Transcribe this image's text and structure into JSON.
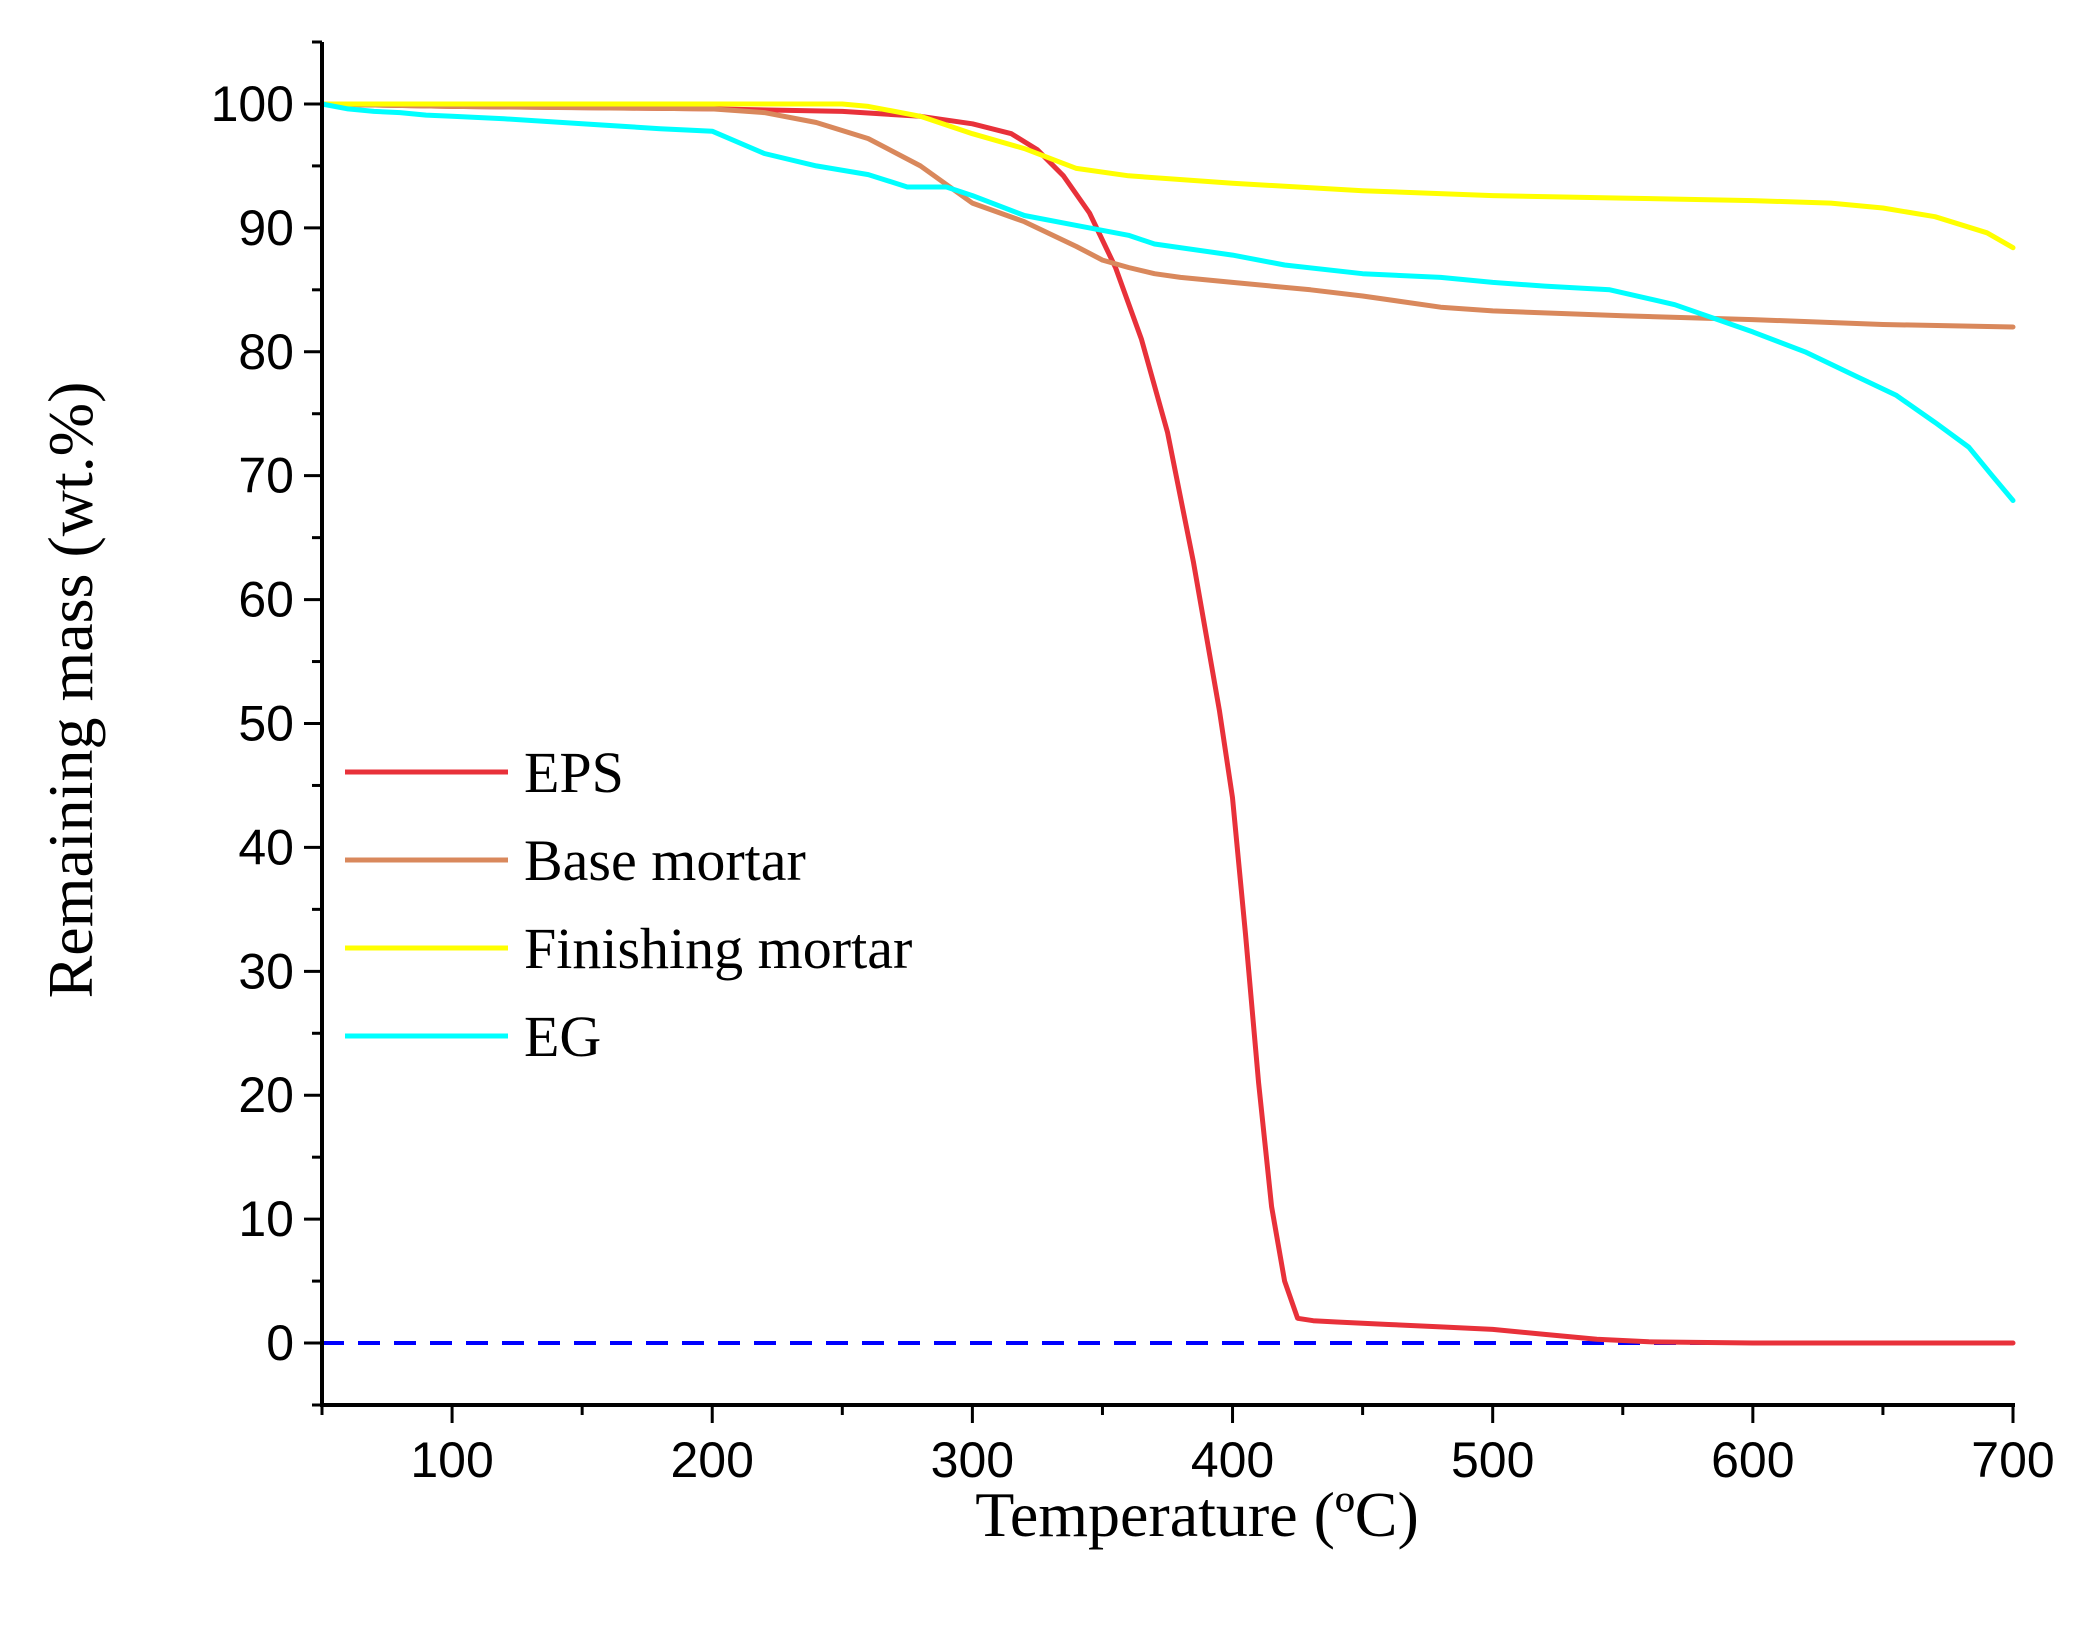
{
  "chart_data": {
    "type": "line",
    "title": "",
    "xlabel": "Temperature (ºC)",
    "ylabel": "Remaining mass (wt.%)",
    "xlim": [
      50,
      700
    ],
    "ylim": [
      -5,
      105
    ],
    "xticks": [
      100,
      200,
      300,
      400,
      500,
      600,
      700
    ],
    "yticks": [
      0,
      10,
      20,
      30,
      40,
      50,
      60,
      70,
      80,
      90,
      100
    ],
    "grid": false,
    "legend_position": "center-left",
    "reference_line": {
      "y": 0,
      "style": "dashed",
      "color": "#0000ff"
    },
    "series": [
      {
        "name": "EPS",
        "color": "#e8313a",
        "x": [
          50,
          100,
          200,
          250,
          280,
          300,
          315,
          325,
          335,
          345,
          355,
          365,
          375,
          385,
          395,
          400,
          405,
          410,
          415,
          420,
          425,
          431,
          440,
          460,
          480,
          500,
          520,
          540,
          560,
          600,
          650,
          700
        ],
        "y": [
          100,
          99.8,
          99.6,
          99.4,
          99.0,
          98.4,
          97.6,
          96.3,
          94.2,
          91.2,
          86.8,
          81.0,
          73.5,
          63.0,
          51.0,
          44.0,
          33.0,
          21.0,
          11.0,
          5.0,
          2.0,
          1.8,
          1.7,
          1.5,
          1.3,
          1.1,
          0.7,
          0.3,
          0.1,
          0.0,
          0.0,
          0.0
        ]
      },
      {
        "name": "Base mortar",
        "color": "#d9885c",
        "x": [
          50,
          100,
          150,
          200,
          220,
          240,
          260,
          280,
          300,
          320,
          340,
          350,
          360,
          370,
          380,
          400,
          430,
          450,
          480,
          500,
          550,
          600,
          650,
          700
        ],
        "y": [
          100,
          99.8,
          99.7,
          99.6,
          99.3,
          98.5,
          97.2,
          95.0,
          92.0,
          90.5,
          88.5,
          87.4,
          86.8,
          86.3,
          86.0,
          85.6,
          85.0,
          84.5,
          83.6,
          83.3,
          82.9,
          82.6,
          82.2,
          82.0
        ]
      },
      {
        "name": "Finishing mortar",
        "color": "#ffff00",
        "x": [
          50,
          100,
          200,
          250,
          260,
          280,
          300,
          320,
          340,
          360,
          400,
          450,
          500,
          550,
          600,
          630,
          650,
          670,
          690,
          700
        ],
        "y": [
          100,
          100,
          100,
          100,
          99.8,
          99.0,
          97.6,
          96.4,
          94.8,
          94.2,
          93.6,
          93.0,
          92.6,
          92.4,
          92.2,
          92.0,
          91.6,
          90.9,
          89.6,
          88.4
        ]
      },
      {
        "name": "EG",
        "color": "#00ffff",
        "x": [
          50,
          60,
          70,
          80,
          90,
          100,
          120,
          150,
          180,
          200,
          220,
          240,
          260,
          275,
          290,
          300,
          320,
          340,
          360,
          370,
          400,
          420,
          450,
          480,
          500,
          520,
          545,
          570,
          600,
          620,
          640,
          655,
          670,
          683,
          692,
          700
        ],
        "y": [
          100,
          99.6,
          99.4,
          99.3,
          99.1,
          99.0,
          98.8,
          98.4,
          98.0,
          97.8,
          96.0,
          95.0,
          94.3,
          93.3,
          93.3,
          92.6,
          91.0,
          90.2,
          89.4,
          88.7,
          87.8,
          87.0,
          86.3,
          86.0,
          85.6,
          85.3,
          85.0,
          83.8,
          81.6,
          80.0,
          78.0,
          76.5,
          74.3,
          72.3,
          70.0,
          68.0
        ]
      }
    ]
  }
}
